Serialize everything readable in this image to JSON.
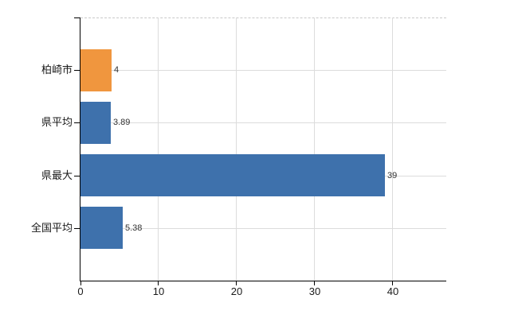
{
  "chart_data": {
    "type": "bar",
    "orientation": "horizontal",
    "title": "",
    "xlabel": "",
    "ylabel": "",
    "categories": [
      "柏崎市",
      "県平均",
      "県最大",
      "全国平均"
    ],
    "values": [
      4,
      3.89,
      39,
      5.38
    ],
    "value_labels": [
      "4",
      "3.89",
      "39",
      "5.38"
    ],
    "bar_colors": [
      "#f0963e",
      "#3e71ac",
      "#3e71ac",
      "#3e71ac"
    ],
    "x_ticks": [
      0,
      10,
      20,
      30,
      40
    ],
    "x_tick_labels": [
      "0",
      "10",
      "20",
      "30",
      "40"
    ],
    "xlim": [
      0,
      46.84
    ],
    "grid": true,
    "legend": "none",
    "colors": {
      "highlight_bar": "#f0963e",
      "default_bar": "#3e71ac",
      "gridline": "#dcdcdc",
      "top_border_dashed": "#c9c9c9",
      "axis": "#000000",
      "tick_text": "#1a1a1a",
      "value_text": "#333333",
      "background": "#ffffff"
    }
  }
}
